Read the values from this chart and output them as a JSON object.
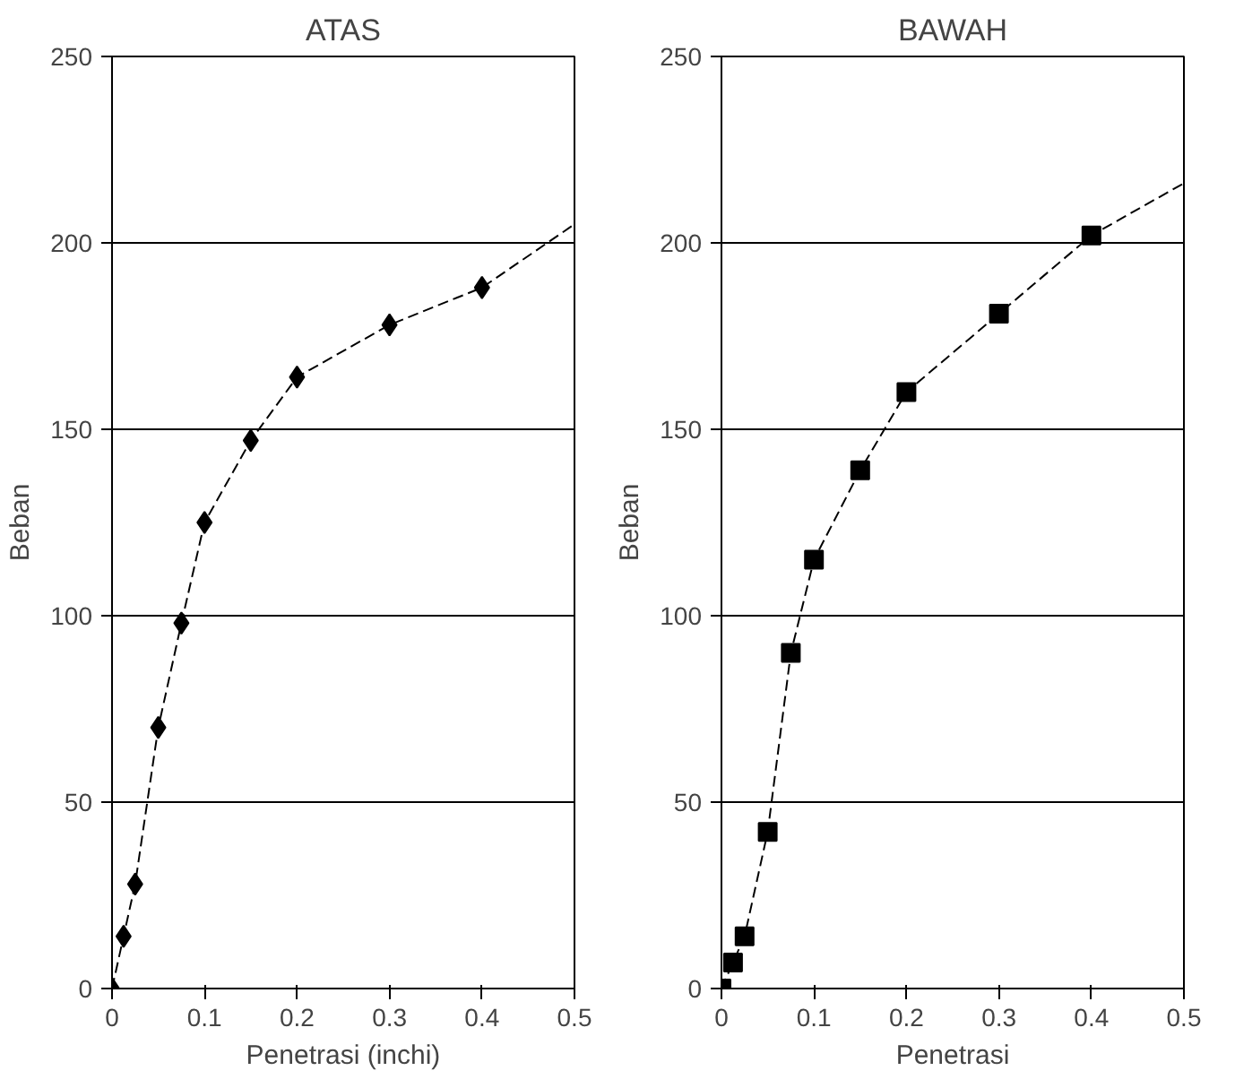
{
  "chart_data": [
    {
      "type": "line",
      "title": "ATAS",
      "xlabel": "Penetrasi (inchi)",
      "ylabel": "Beban",
      "marker": "diamond",
      "line_style": "dashed",
      "grid": "y",
      "xlim": [
        0,
        0.5
      ],
      "xticks": [
        0,
        0.1,
        0.2,
        0.3,
        0.4,
        0.5
      ],
      "ylim": [
        0,
        250
      ],
      "yticks": [
        0,
        50,
        100,
        150,
        200,
        250
      ],
      "series": [
        {
          "marker": "none",
          "color": "#000000",
          "x": [
            0,
            0.0125,
            0.025,
            0.05,
            0.075,
            0.1,
            0.15,
            0.2,
            0.3,
            0.4,
            0.5
          ],
          "values": [
            0,
            14,
            28,
            70,
            98,
            125,
            147,
            164,
            178,
            188,
            205
          ]
        },
        {
          "type": "scatter",
          "color": "#000000",
          "x": [
            0,
            0.0125,
            0.025,
            0.05,
            0.075,
            0.1,
            0.15,
            0.2,
            0.3,
            0.4
          ],
          "values": [
            0,
            14,
            28,
            70,
            98,
            125,
            147,
            164,
            178,
            188
          ]
        }
      ]
    },
    {
      "type": "line",
      "title": "BAWAH",
      "xlabel": "Penetrasi",
      "ylabel": "Beban",
      "marker": "square",
      "line_style": "dashed",
      "grid": "y",
      "xlim": [
        0,
        0.5
      ],
      "xticks": [
        0,
        0.1,
        0.2,
        0.3,
        0.4,
        0.5
      ],
      "ylim": [
        0,
        250
      ],
      "yticks": [
        0,
        50,
        100,
        150,
        200,
        250
      ],
      "series": [
        {
          "marker": "none",
          "color": "#000000",
          "x": [
            0,
            0.0125,
            0.025,
            0.05,
            0.075,
            0.1,
            0.15,
            0.2,
            0.3,
            0.4,
            0.5
          ],
          "values": [
            0,
            7,
            14,
            42,
            90,
            115,
            139,
            160,
            181,
            202,
            216
          ]
        },
        {
          "type": "scatter",
          "color": "#000000",
          "x": [
            0,
            0.0125,
            0.025,
            0.05,
            0.075,
            0.1,
            0.15,
            0.2,
            0.3,
            0.4
          ],
          "values": [
            0,
            7,
            14,
            42,
            90,
            115,
            139,
            160,
            181,
            202
          ]
        }
      ]
    }
  ]
}
